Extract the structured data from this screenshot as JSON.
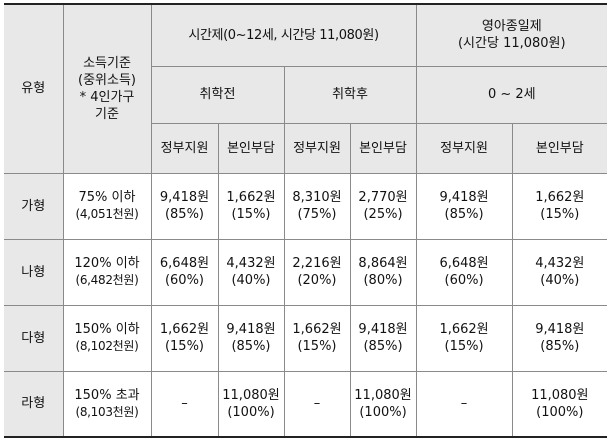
{
  "headers": {
    "type": "유형",
    "income_criteria_lines": [
      "소득기준",
      "(중위소득)",
      "* 4인가구",
      "기준"
    ],
    "hourly": "시간제(0~12세, 시간당 11,080원)",
    "infant_lines": [
      "영아종일제",
      "(시간당 11,080원)"
    ],
    "before_school": "취학전",
    "after_school": "취학후",
    "infant_age": "0 ~ 2세",
    "gov_support": "정부지원",
    "self_pay": "본인부담"
  },
  "rows": [
    {
      "type": "가형",
      "criteria": "75% 이하",
      "criteria_sub": "(4,051천원)",
      "cells": [
        {
          "v": "9,418원",
          "p": "(85%)"
        },
        {
          "v": "1,662원",
          "p": "(15%)"
        },
        {
          "v": "8,310원",
          "p": "(75%)"
        },
        {
          "v": "2,770원",
          "p": "(25%)"
        },
        {
          "v": "9,418원",
          "p": "(85%)"
        },
        {
          "v": "1,662원",
          "p": "(15%)"
        }
      ]
    },
    {
      "type": "나형",
      "criteria": "120% 이하",
      "criteria_sub": "(6,482천원)",
      "cells": [
        {
          "v": "6,648원",
          "p": "(60%)"
        },
        {
          "v": "4,432원",
          "p": "(40%)"
        },
        {
          "v": "2,216원",
          "p": "(20%)"
        },
        {
          "v": "8,864원",
          "p": "(80%)"
        },
        {
          "v": "6,648원",
          "p": "(60%)"
        },
        {
          "v": "4,432원",
          "p": "(40%)"
        }
      ]
    },
    {
      "type": "다형",
      "criteria": "150% 이하",
      "criteria_sub": "(8,102천원)",
      "cells": [
        {
          "v": "1,662원",
          "p": "(15%)"
        },
        {
          "v": "9,418원",
          "p": "(85%)"
        },
        {
          "v": "1,662원",
          "p": "(15%)"
        },
        {
          "v": "9,418원",
          "p": "(85%)"
        },
        {
          "v": "1,662원",
          "p": "(15%)"
        },
        {
          "v": "9,418원",
          "p": "(85%)"
        }
      ]
    },
    {
      "type": "라형",
      "criteria": "150% 초과",
      "criteria_sub": "(8,103천원)",
      "cells": [
        {
          "v": "–",
          "p": ""
        },
        {
          "v": "11,080원",
          "p": "(100%)"
        },
        {
          "v": "–",
          "p": ""
        },
        {
          "v": "11,080원",
          "p": "(100%)"
        },
        {
          "v": "–",
          "p": ""
        },
        {
          "v": "11,080원",
          "p": "(100%)"
        }
      ]
    }
  ]
}
